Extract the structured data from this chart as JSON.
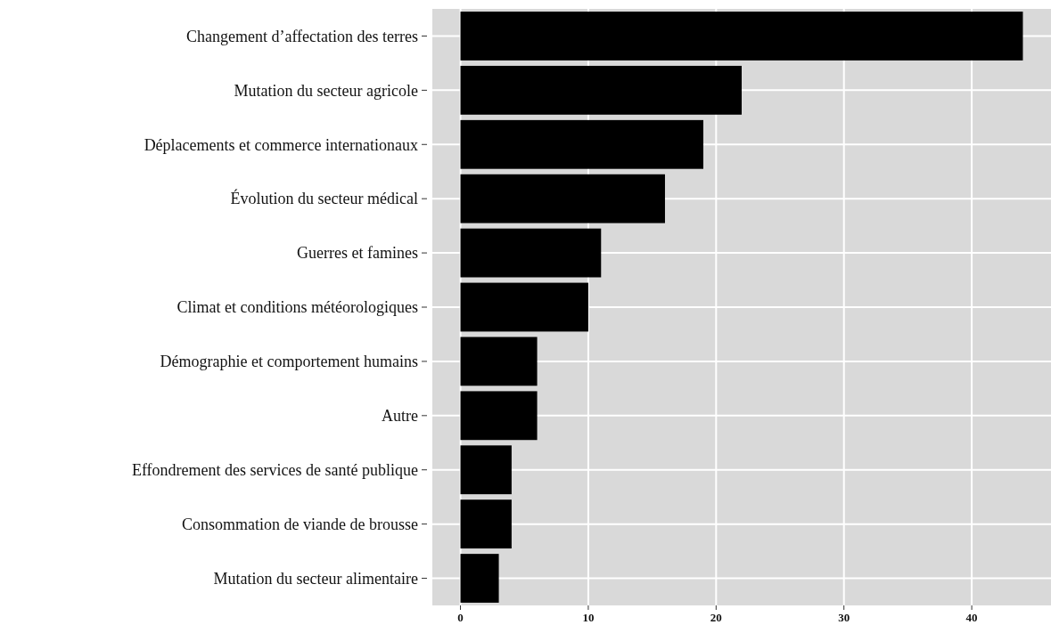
{
  "chart_data": {
    "type": "bar",
    "orientation": "horizontal",
    "categories": [
      "Changement d’affectation des terres",
      "Mutation  du secteur agricole",
      "Déplacements  et commerce internationaux",
      "Évolution du secteur médical",
      "Guerres et famines",
      "Climat  et conditions météorologiques",
      "Démographie et comportement humains",
      "Autre",
      "Effondrement des services de santé publique",
      "Consommation de viande de brousse",
      "Mutation  du secteur alimentaire"
    ],
    "values": [
      44,
      22,
      19,
      16,
      11,
      10,
      6,
      6,
      4,
      4,
      3
    ],
    "color": "#000000",
    "xlim": [
      -2.2,
      46.2
    ],
    "xticks": [
      0,
      10,
      20,
      30,
      40
    ],
    "grid": true
  }
}
